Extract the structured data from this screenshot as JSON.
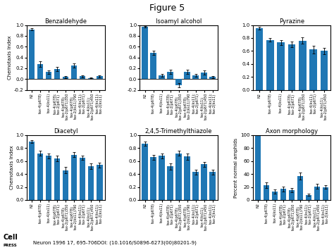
{
  "title": "Figure 5",
  "annotations": [
    "Cell",
    "PRESS",
    "Neuron 1996 17, 695-706DOI: (10.1016/S0896-6273(00)80201-9)"
  ],
  "chart_data": [
    {
      "type": "bar",
      "title": "Benzaldehyde",
      "y_label": "Chemotaxis Index",
      "ylim": [
        -0.2,
        1.0
      ],
      "yticks": [
        -0.2,
        0.0,
        0.2,
        0.4,
        0.6,
        0.8,
        1.0
      ],
      "categories": [
        "N2",
        "tax-4(p678)",
        "tax-4(ks11)",
        "tax-4(p678);\ntax-2(p671)",
        "tax-4(p678);\ntax-2(p671)350",
        "tax-4(p678);\ntax-2(ks11)790",
        "tax-4(ks11);\ntax-2(p671)",
        "tax-4(ks11);\ntax-2(p671)450",
        "tax-4(ks11);\ntax-2(ks11)"
      ],
      "values": [
        0.92,
        0.28,
        0.13,
        0.18,
        0.04,
        0.25,
        0.05,
        0.02,
        0.05
      ],
      "errors": [
        0.02,
        0.05,
        0.03,
        0.04,
        0.02,
        0.04,
        0.02,
        0.01,
        0.02
      ]
    },
    {
      "type": "bar",
      "title": "Isoamyl alcohol",
      "ylim": [
        -0.2,
        1.0
      ],
      "yticks": [
        -0.2,
        0.0,
        0.2,
        0.4,
        0.6,
        0.8,
        1.0
      ],
      "categories": [
        "N2",
        "tax-4(p678)",
        "tax-4(ks11)",
        "tax-4(p678);\ntax-2(p671)",
        "tax-4(p678);\ntax-2(p671)350",
        "tax-4(p678);\ntax-2(ks11)790",
        "tax-4(ks11);\ntax-2(p671)",
        "tax-4(ks11);\ntax-2(p671)450",
        "tax-4(ks11);\ntax-2(ks11)"
      ],
      "values": [
        0.97,
        0.48,
        0.07,
        0.13,
        -0.12,
        0.13,
        0.07,
        0.12,
        0.04
      ],
      "errors": [
        0.01,
        0.04,
        0.03,
        0.04,
        0.04,
        0.04,
        0.03,
        0.04,
        0.02
      ]
    },
    {
      "type": "bar",
      "title": "Pyrazine",
      "ylim": [
        0.0,
        1.0
      ],
      "yticks": [
        0.0,
        0.2,
        0.4,
        0.6,
        0.8,
        1.0
      ],
      "categories": [
        "N2",
        "tax-4(p678)",
        "tax-4(ks11)",
        "tax-4(p678);\ntax-2(p671)",
        "tax-4(p678);\ntax-2(p671)350",
        "tax-4(ks11);\ntax-2(p671)",
        "tax-4(ks11);\ntax-2(p671)450"
      ],
      "values": [
        0.95,
        0.77,
        0.73,
        0.7,
        0.76,
        0.62,
        0.6
      ],
      "errors": [
        0.02,
        0.03,
        0.04,
        0.04,
        0.05,
        0.06,
        0.05
      ]
    },
    {
      "type": "bar",
      "title": "Diacetyl",
      "y_label": "Chemotaxis Index",
      "ylim": [
        0.0,
        1.0
      ],
      "yticks": [
        0.0,
        0.2,
        0.4,
        0.6,
        0.8,
        1.0
      ],
      "categories": [
        "N2",
        "tax-4(p678)",
        "tax-4(ks11)",
        "tax-4(p678);\ntax-2(p671)",
        "tax-4(p678);\ntax-2(p671)350",
        "tax-4(p678);\ntax-2(ks11)790",
        "tax-4(ks11);\ntax-2(p671)",
        "tax-4(ks11);\ntax-2(p671)450",
        "tax-4(ks11);\ntax-2(ks11)"
      ],
      "values": [
        0.9,
        0.72,
        0.68,
        0.64,
        0.46,
        0.7,
        0.65,
        0.52,
        0.54
      ],
      "errors": [
        0.02,
        0.04,
        0.04,
        0.04,
        0.05,
        0.04,
        0.03,
        0.04,
        0.04
      ]
    },
    {
      "type": "bar",
      "title": "2,4,5-Trimethylthiazole",
      "ylim": [
        0.0,
        1.0
      ],
      "yticks": [
        0.0,
        0.2,
        0.4,
        0.6,
        0.8,
        1.0
      ],
      "categories": [
        "N2",
        "tax-4(p678)",
        "tax-4(ks11)",
        "tax-4(p678);\ntax-2(p671)",
        "tax-4(p678);\ntax-2(p671)350",
        "tax-4(p678);\ntax-2(ks11)790",
        "tax-4(ks11);\ntax-2(p671)",
        "tax-4(ks11);\ntax-2(p671)450",
        "tax-4(ks11);\ntax-2(ks11)"
      ],
      "values": [
        0.87,
        0.66,
        0.68,
        0.52,
        0.72,
        0.67,
        0.43,
        0.55,
        0.43
      ],
      "errors": [
        0.03,
        0.04,
        0.04,
        0.05,
        0.04,
        0.05,
        0.04,
        0.04,
        0.04
      ]
    },
    {
      "type": "bar",
      "title": "Axon morphology",
      "y_label": "Percent normal amphids",
      "ylim": [
        0,
        100
      ],
      "yticks": [
        0,
        20,
        40,
        60,
        80,
        100
      ],
      "categories": [
        "N2",
        "tax-4(p678)",
        "tax-4(ks11)",
        "tax-4(p678);\ntax-2(p671)",
        "tax-4(p678);\ntax-2(p671)350",
        "tax-4(p678);\ntax-2(ks11)790",
        "tax-4(ks11);\ntax-2(p671)",
        "tax-4(ks11);\ntax-2(p671)450",
        "tax-4(ks11);\ntax-2(ks11)"
      ],
      "values": [
        100,
        23,
        13,
        17,
        15,
        37,
        8,
        21,
        20
      ],
      "errors": [
        0,
        4,
        3,
        4,
        3,
        5,
        2,
        4,
        3
      ]
    }
  ]
}
